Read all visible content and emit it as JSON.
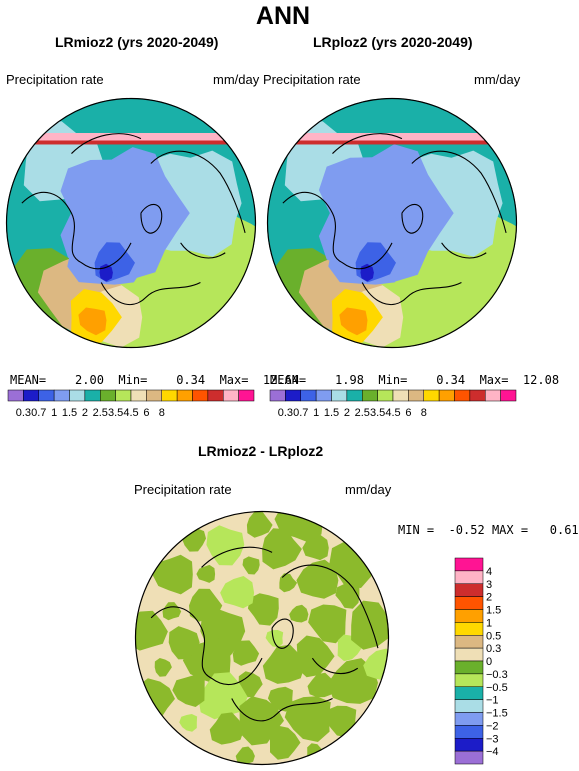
{
  "page": {
    "title": "ANN",
    "panels": [
      {
        "title": "LRmioz2 (yrs 2020-2049)",
        "variable": "Precipitation rate",
        "units": "mm/day",
        "stats": {
          "mean_label": "MEAN=",
          "mean": "2.00",
          "min_label": "Min=",
          "min": "0.34",
          "max_label": "Max=",
          "max": "12.64"
        }
      },
      {
        "title": "LRploz2 (yrs 2020-2049)",
        "variable": "Precipitation rate",
        "units": "mm/day",
        "stats": {
          "mean_label": "MEAN=",
          "mean": "1.98",
          "min_label": "Min=",
          "min": "0.34",
          "max_label": "Max=",
          "max": "12.08"
        }
      },
      {
        "title": "LRmioz2 - LRploz2",
        "variable": "Precipitation rate",
        "units": "mm/day",
        "stats": {
          "min_label": "MIN =",
          "min": "-0.52",
          "max_label": "MAX =",
          "max": "0.61"
        }
      }
    ]
  },
  "chart_data": [
    {
      "type": "heatmap",
      "title": "LRmioz2 (yrs 2020-2049)",
      "projection": "polar stereographic (north)",
      "colorbar": {
        "orientation": "horizontal",
        "ticks": [
          "0.3",
          "0.7",
          "1",
          "1.5",
          "2",
          "2.5",
          "3.5",
          "4.5",
          "6",
          "8"
        ],
        "colors": [
          "#9b6fd6",
          "#1c1cc8",
          "#3d62e6",
          "#7f9cf0",
          "#aadde6",
          "#1ab0a8",
          "#6ab02c",
          "#b6e65a",
          "#efdfb6",
          "#dcb882",
          "#ffd800",
          "#ffa000",
          "#ff5400",
          "#cd2d2d",
          "#ffb4c6",
          "#ff1493"
        ]
      }
    },
    {
      "type": "heatmap",
      "title": "LRploz2 (yrs 2020-2049)",
      "projection": "polar stereographic (north)",
      "colorbar": {
        "orientation": "horizontal",
        "ticks": [
          "0.3",
          "0.7",
          "1",
          "1.5",
          "2",
          "2.5",
          "3.5",
          "4.5",
          "6",
          "8"
        ],
        "colors": [
          "#9b6fd6",
          "#1c1cc8",
          "#3d62e6",
          "#7f9cf0",
          "#aadde6",
          "#1ab0a8",
          "#6ab02c",
          "#b6e65a",
          "#efdfb6",
          "#dcb882",
          "#ffd800",
          "#ffa000",
          "#ff5400",
          "#cd2d2d",
          "#ffb4c6",
          "#ff1493"
        ]
      }
    },
    {
      "type": "heatmap",
      "title": "LRmioz2 - LRploz2",
      "projection": "polar stereographic (north)",
      "colorbar": {
        "orientation": "vertical",
        "ticks": [
          "4",
          "3",
          "2",
          "1.5",
          "1",
          "0.5",
          "0.3",
          "0",
          "−0.3",
          "−0.5",
          "−1",
          "−1.5",
          "−2",
          "−3",
          "−4"
        ],
        "colors": [
          "#ff1493",
          "#ffb4c6",
          "#cd2d2d",
          "#ff5400",
          "#ffa000",
          "#ffd800",
          "#dcb882",
          "#efdfb6",
          "#6ab02c",
          "#b6e65a",
          "#1ab0a8",
          "#aadde6",
          "#7f9cf0",
          "#3d62e6",
          "#1c1cc8",
          "#9b6fd6"
        ]
      }
    }
  ]
}
